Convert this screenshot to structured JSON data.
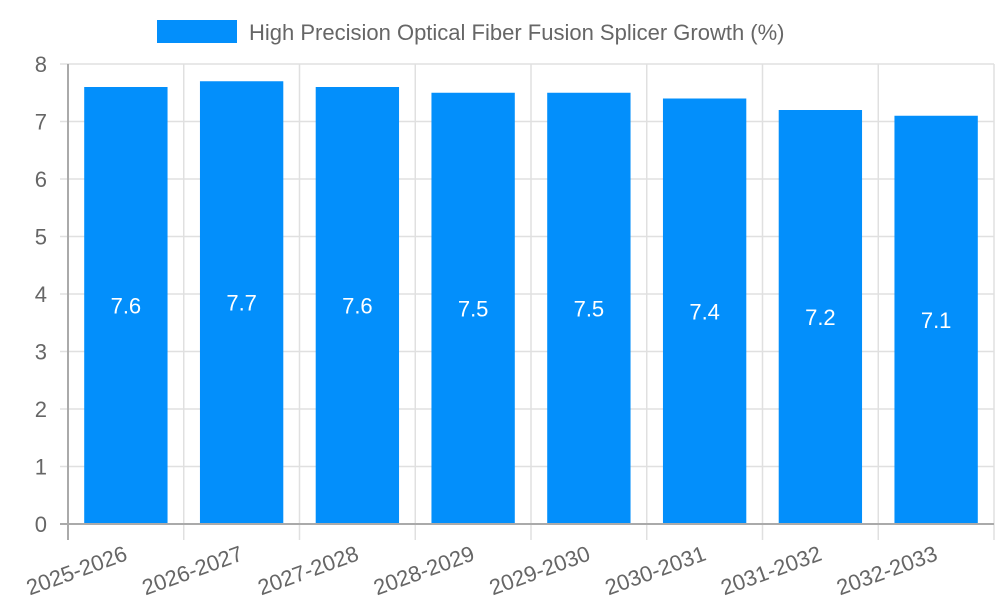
{
  "chart_data": {
    "type": "bar",
    "title": "",
    "legend": [
      "High Precision Optical Fiber Fusion Splicer Growth (%)"
    ],
    "legend_position": "top",
    "xlabel": "",
    "ylabel": "",
    "ylim": [
      0,
      8
    ],
    "yticks": [
      0,
      1,
      2,
      3,
      4,
      5,
      6,
      7,
      8
    ],
    "grid": true,
    "categories": [
      "2025-2026",
      "2026-2027",
      "2027-2028",
      "2028-2029",
      "2029-2030",
      "2030-2031",
      "2031-2032",
      "2032-2033"
    ],
    "series": [
      {
        "name": "High Precision Optical Fiber Fusion Splicer Growth (%)",
        "color": "#038ffb",
        "values": [
          7.6,
          7.7,
          7.6,
          7.5,
          7.5,
          7.4,
          7.2,
          7.1
        ],
        "data_labels": [
          "7.6",
          "7.7",
          "7.6",
          "7.5",
          "7.5",
          "7.4",
          "7.2",
          "7.1"
        ]
      }
    ]
  },
  "colors": {
    "bar": "#038ffb",
    "grid": "#e0e0e0",
    "axis": "#aaaaaa",
    "text": "#666666",
    "label": "#ffffff"
  }
}
